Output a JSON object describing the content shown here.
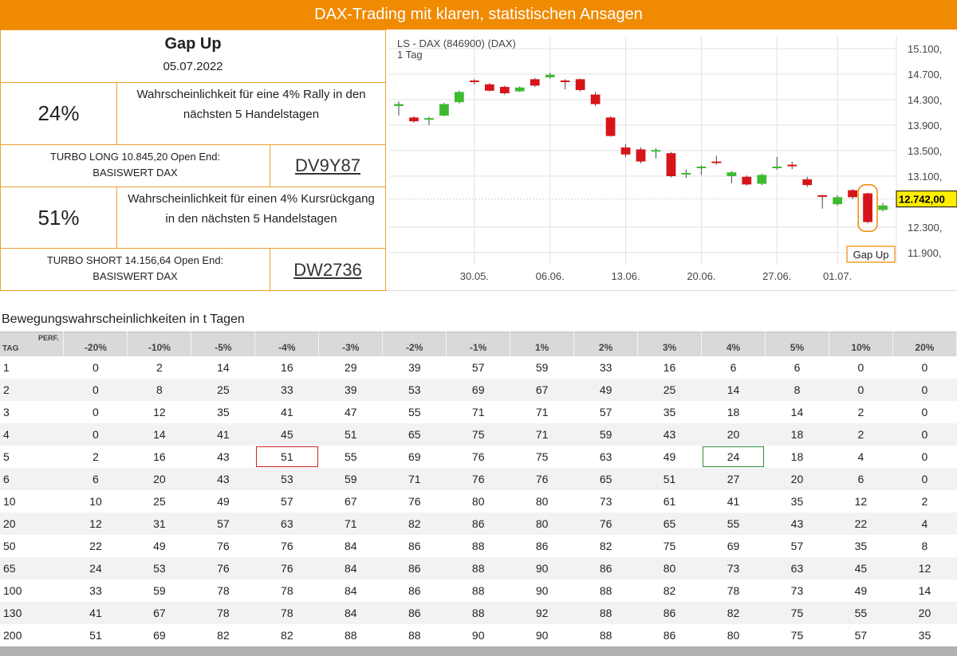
{
  "banner": "DAX-Trading mit klaren, statistischen Ansagen",
  "info": {
    "title": "Gap Up",
    "date": "05.07.2022",
    "long": {
      "pct": "24%",
      "desc_line1": "Wahrscheinlichkeit für eine 4% Rally in den",
      "desc_line2": "nächsten 5 Handelstagen",
      "name_line1": "TURBO LONG 10.845,20 Open End:",
      "name_line2": "BASISWERT DAX",
      "wkn": "DV9Y87"
    },
    "short": {
      "pct": "51%",
      "desc_line1": "Wahrscheinlichkeit für einen 4% Kursrückgang",
      "desc_line2": "in den nächsten 5 Handelstagen",
      "name_line1": "TURBO SHORT 14.156,64 Open End:",
      "name_line2": "BASISWERT DAX",
      "wkn": "DW2736"
    }
  },
  "chart_data": {
    "type": "candlestick",
    "title": "LS - DAX (846900) (DAX)",
    "subtitle": "1 Tag",
    "ylim": [
      11700,
      15300
    ],
    "y_ticks": [
      "15.100,",
      "14.700,",
      "14.300,",
      "13.900,",
      "13.500,",
      "13.100,",
      "12.300,",
      "11.900,"
    ],
    "y_tick_values": [
      15100,
      14700,
      14300,
      13900,
      13500,
      13100,
      12300,
      11900
    ],
    "x_ticks": [
      "30.05.",
      "06.06.",
      "13.06.",
      "20.06.",
      "27.06.",
      "01.07."
    ],
    "x_tick_index": [
      5,
      10,
      15,
      20,
      25,
      29
    ],
    "last_price_label": "12.742,00",
    "last_price": 12742,
    "annotation": "Gap Up",
    "colors": {
      "up": "#3dbb2f",
      "down": "#d7141a",
      "accent": "#f08a00",
      "price_tag": "#ffee00"
    },
    "candles": [
      {
        "o": 14200,
        "c": 14230,
        "h": 14270,
        "l": 14050
      },
      {
        "o": 14020,
        "c": 13960,
        "h": 14040,
        "l": 13940
      },
      {
        "o": 14000,
        "c": 14010,
        "h": 14030,
        "l": 13900
      },
      {
        "o": 14050,
        "c": 14230,
        "h": 14250,
        "l": 14040
      },
      {
        "o": 14260,
        "c": 14420,
        "h": 14440,
        "l": 14240
      },
      {
        "o": 14600,
        "c": 14590,
        "h": 14620,
        "l": 14540
      },
      {
        "o": 14540,
        "c": 14440,
        "h": 14560,
        "l": 14430
      },
      {
        "o": 14500,
        "c": 14400,
        "h": 14520,
        "l": 14380
      },
      {
        "o": 14430,
        "c": 14490,
        "h": 14510,
        "l": 14420
      },
      {
        "o": 14620,
        "c": 14520,
        "h": 14640,
        "l": 14500
      },
      {
        "o": 14650,
        "c": 14690,
        "h": 14720,
        "l": 14630
      },
      {
        "o": 14600,
        "c": 14580,
        "h": 14620,
        "l": 14460
      },
      {
        "o": 14620,
        "c": 14450,
        "h": 14630,
        "l": 14430
      },
      {
        "o": 14380,
        "c": 14230,
        "h": 14420,
        "l": 14200
      },
      {
        "o": 14020,
        "c": 13730,
        "h": 14040,
        "l": 13720
      },
      {
        "o": 13550,
        "c": 13440,
        "h": 13600,
        "l": 13400
      },
      {
        "o": 13520,
        "c": 13330,
        "h": 13550,
        "l": 13300
      },
      {
        "o": 13500,
        "c": 13510,
        "h": 13540,
        "l": 13380
      },
      {
        "o": 13460,
        "c": 13100,
        "h": 13480,
        "l": 13080
      },
      {
        "o": 13140,
        "c": 13150,
        "h": 13200,
        "l": 13070
      },
      {
        "o": 13230,
        "c": 13250,
        "h": 13270,
        "l": 13120
      },
      {
        "o": 13330,
        "c": 13310,
        "h": 13420,
        "l": 13280
      },
      {
        "o": 13100,
        "c": 13160,
        "h": 13180,
        "l": 12990
      },
      {
        "o": 13090,
        "c": 12970,
        "h": 13110,
        "l": 12950
      },
      {
        "o": 12980,
        "c": 13120,
        "h": 13140,
        "l": 12960
      },
      {
        "o": 13230,
        "c": 13250,
        "h": 13400,
        "l": 13200
      },
      {
        "o": 13280,
        "c": 13270,
        "h": 13330,
        "l": 13210
      },
      {
        "o": 13050,
        "c": 12960,
        "h": 13090,
        "l": 12930
      },
      {
        "o": 12800,
        "c": 12790,
        "h": 12810,
        "l": 12590
      },
      {
        "o": 12660,
        "c": 12770,
        "h": 12800,
        "l": 12640
      },
      {
        "o": 12880,
        "c": 12770,
        "h": 12900,
        "l": 12740
      },
      {
        "o": 12830,
        "c": 12380,
        "h": 12840,
        "l": 12360
      },
      {
        "o": 12570,
        "c": 12640,
        "h": 12680,
        "l": 12550
      }
    ]
  },
  "table": {
    "title": "Bewegungswahrscheinlichkeiten in t Tagen",
    "corner_top": "PERF.",
    "corner_bottom": "TAG",
    "columns": [
      "-20%",
      "-10%",
      "-5%",
      "-4%",
      "-3%",
      "-2%",
      "-1%",
      "1%",
      "2%",
      "3%",
      "4%",
      "5%",
      "10%",
      "20%"
    ],
    "rows": [
      {
        "tag": "1",
        "values": [
          "0",
          "2",
          "14",
          "16",
          "29",
          "39",
          "57",
          "59",
          "33",
          "16",
          "6",
          "6",
          "0",
          "0"
        ]
      },
      {
        "tag": "2",
        "values": [
          "0",
          "8",
          "25",
          "33",
          "39",
          "53",
          "69",
          "67",
          "49",
          "25",
          "14",
          "8",
          "0",
          "0"
        ]
      },
      {
        "tag": "3",
        "values": [
          "0",
          "12",
          "35",
          "41",
          "47",
          "55",
          "71",
          "71",
          "57",
          "35",
          "18",
          "14",
          "2",
          "0"
        ]
      },
      {
        "tag": "4",
        "values": [
          "0",
          "14",
          "41",
          "45",
          "51",
          "65",
          "75",
          "71",
          "59",
          "43",
          "20",
          "18",
          "2",
          "0"
        ]
      },
      {
        "tag": "5",
        "values": [
          "2",
          "16",
          "43",
          "51",
          "55",
          "69",
          "76",
          "75",
          "63",
          "49",
          "24",
          "18",
          "4",
          "0"
        ]
      },
      {
        "tag": "6",
        "values": [
          "6",
          "20",
          "43",
          "53",
          "59",
          "71",
          "76",
          "76",
          "65",
          "51",
          "27",
          "20",
          "6",
          "0"
        ]
      },
      {
        "tag": "10",
        "values": [
          "10",
          "25",
          "49",
          "57",
          "67",
          "76",
          "80",
          "80",
          "73",
          "61",
          "41",
          "35",
          "12",
          "2"
        ]
      },
      {
        "tag": "20",
        "values": [
          "12",
          "31",
          "57",
          "63",
          "71",
          "82",
          "86",
          "80",
          "76",
          "65",
          "55",
          "43",
          "22",
          "4"
        ]
      },
      {
        "tag": "50",
        "values": [
          "22",
          "49",
          "76",
          "76",
          "84",
          "86",
          "88",
          "86",
          "82",
          "75",
          "69",
          "57",
          "35",
          "8"
        ]
      },
      {
        "tag": "65",
        "values": [
          "24",
          "53",
          "76",
          "76",
          "84",
          "86",
          "88",
          "90",
          "86",
          "80",
          "73",
          "63",
          "45",
          "12"
        ]
      },
      {
        "tag": "100",
        "values": [
          "33",
          "59",
          "78",
          "78",
          "84",
          "86",
          "88",
          "90",
          "88",
          "82",
          "78",
          "73",
          "49",
          "14"
        ]
      },
      {
        "tag": "130",
        "values": [
          "41",
          "67",
          "78",
          "78",
          "84",
          "86",
          "88",
          "92",
          "88",
          "86",
          "82",
          "75",
          "55",
          "20"
        ]
      },
      {
        "tag": "200",
        "values": [
          "51",
          "69",
          "82",
          "82",
          "88",
          "88",
          "90",
          "90",
          "88",
          "86",
          "80",
          "75",
          "57",
          "35"
        ]
      }
    ]
  }
}
